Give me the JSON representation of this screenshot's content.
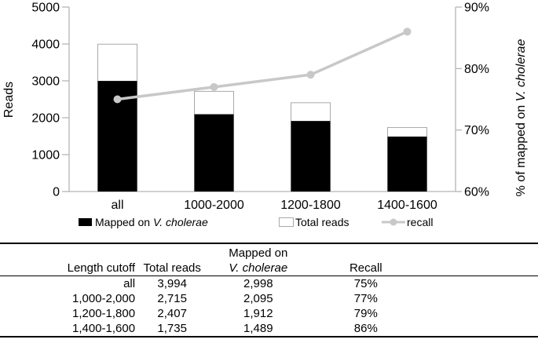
{
  "chart_data": {
    "type": "bar",
    "subtype": "stacked-bar-with-line-overlay",
    "categories": [
      "all",
      "1000-2000",
      "1200-1800",
      "1400-1600"
    ],
    "series": [
      {
        "name": "Mapped on V. cholerae",
        "type": "bar",
        "axis": "left",
        "values": [
          2998,
          2095,
          1912,
          1489
        ],
        "color": "#000000"
      },
      {
        "name": "Total reads",
        "type": "bar",
        "axis": "left",
        "values": [
          3994,
          2715,
          2407,
          1735
        ],
        "color": "#ffffff",
        "border_color": "#a9a9a9"
      },
      {
        "name": "recall",
        "type": "line",
        "axis": "right",
        "values": [
          75,
          77,
          79,
          86
        ],
        "unit": "%",
        "color": "#c8c8c8"
      }
    ],
    "left_axis": {
      "label": "Reads",
      "min": 0,
      "max": 5000,
      "tick_step": 1000
    },
    "right_axis": {
      "label_prefix": "% of mapped on ",
      "label_italic": "V. cholerae",
      "min": 60,
      "max": 90,
      "tick_step": 10,
      "tick_suffix": "%"
    },
    "legend": [
      {
        "swatch": "black-square",
        "label_prefix": "Mapped on ",
        "label_italic": "V. cholerae"
      },
      {
        "swatch": "white-square",
        "label": "Total reads"
      },
      {
        "swatch": "gray-line-marker",
        "label": "recall"
      }
    ],
    "grid": false,
    "legend_position": "bottom"
  },
  "table": {
    "headers": {
      "col1": "Length cutoff",
      "col2": "Total reads",
      "col3_line1": "Mapped on",
      "col3_line2_italic": "V. cholerae",
      "col4": "Recall"
    },
    "rows": [
      [
        "all",
        "3,994",
        "2,998",
        "75%"
      ],
      [
        "1,000-2,000",
        "2,715",
        "2,095",
        "77%"
      ],
      [
        "1,200-1,800",
        "2,407",
        "1,912",
        "79%"
      ],
      [
        "1,400-1,600",
        "1,735",
        "1,489",
        "86%"
      ]
    ]
  },
  "colors": {
    "bar_mapped": "#000000",
    "bar_total_fill": "#ffffff",
    "bar_total_border": "#a9a9a9",
    "recall_line": "#c8c8c8",
    "axis_line": "#b5b5b5",
    "text": "#000000",
    "background": "#ffffff"
  }
}
